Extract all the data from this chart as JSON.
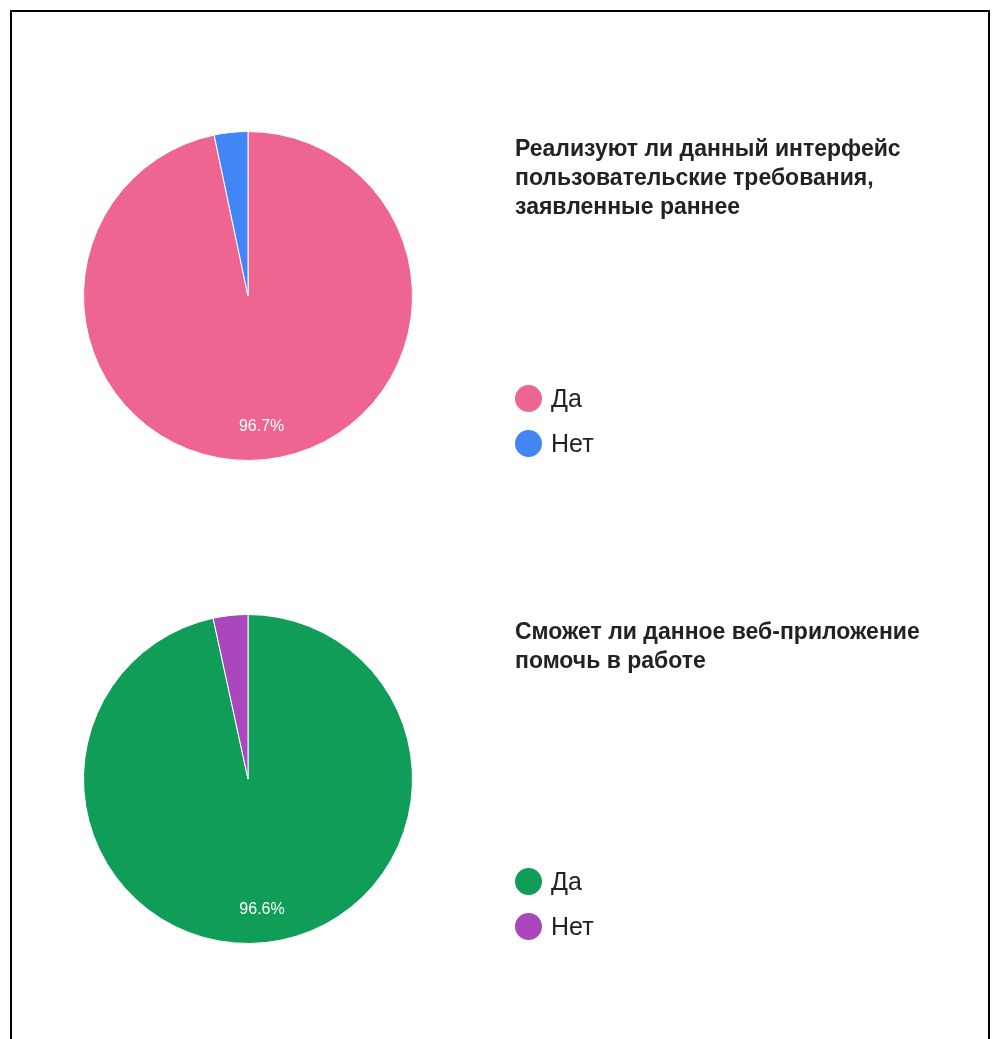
{
  "chart_data": [
    {
      "type": "pie",
      "title": "Реализуют ли данный интерфейс пользовательские требования, заявленные раннее",
      "categories": [
        "Да",
        "Нет"
      ],
      "values": [
        96.7,
        3.3
      ],
      "colors": [
        "#ef6591",
        "#4285f4"
      ],
      "value_labels": [
        "96.7%",
        null
      ],
      "legend": "right"
    },
    {
      "type": "pie",
      "title": "Сможет ли данное веб-приложение помочь в работе",
      "categories": [
        "Да",
        "Нет"
      ],
      "values": [
        96.6,
        3.4
      ],
      "colors": [
        "#0f9d58",
        "#ab47bc"
      ],
      "value_labels": [
        "96.6%",
        null
      ],
      "legend": "right"
    }
  ]
}
